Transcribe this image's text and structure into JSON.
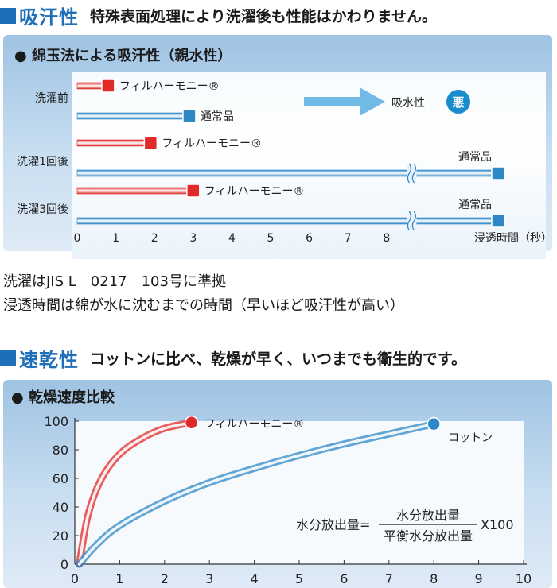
{
  "section1": {
    "title": "吸汗性",
    "subtitle": "特殊表面処理により洗濯後も性能はかわりません。",
    "panel_title": "● 綿玉法による吸汗性（親水性）",
    "notes": [
      "洗濯はJIS L　0217　103号に準拠",
      "浸透時間は綿が水に沈むまでの時間（早いほど吸汗性が高い）"
    ]
  },
  "section2": {
    "title": "速乾性",
    "subtitle": "コットンに比べ、乾燥が早く、いつまでも衛生的です。",
    "panel_title": "● 乾燥速度比較"
  },
  "colors": {
    "accent": "#1f6fb8",
    "red": "#e02a2a",
    "blue": "#2f88c6",
    "badge": "#1a8ccc"
  },
  "chart_data": [
    {
      "type": "bar",
      "orientation": "horizontal",
      "title": "綿玉法による吸汗性（親水性）",
      "xlabel": "浸透時間（秒）",
      "x_ticks": [
        "0",
        "1",
        "2",
        "3",
        "4",
        "5",
        "6",
        "7",
        "8"
      ],
      "xlim": [
        0,
        8
      ],
      "axis_break_after": 8,
      "groups": [
        {
          "label": "洗濯前",
          "bars": [
            {
              "name": "フィルハーモニー®",
              "value": 0.8,
              "color": "red"
            },
            {
              "name": "通常品",
              "value": 2.9,
              "color": "blue"
            }
          ]
        },
        {
          "label": "洗濯1回後",
          "bars": [
            {
              "name": "フィルハーモニー®",
              "value": 1.9,
              "color": "red"
            },
            {
              "name": "通常品",
              "value": ">8",
              "color": "blue",
              "broken": true
            }
          ]
        },
        {
          "label": "洗濯3回後",
          "bars": [
            {
              "name": "フィルハーモニー®",
              "value": 3.0,
              "color": "red"
            },
            {
              "name": "通常品",
              "value": ">8",
              "color": "blue",
              "broken": true
            }
          ]
        }
      ],
      "annotation": {
        "text": "吸水性",
        "badge": "悪"
      }
    },
    {
      "type": "line",
      "title": "乾燥速度比較",
      "xlim": [
        0,
        10
      ],
      "ylim": [
        0,
        100
      ],
      "x_ticks": [
        0,
        1,
        2,
        3,
        4,
        5,
        6,
        7,
        8,
        9,
        10
      ],
      "y_ticks": [
        0,
        20,
        40,
        60,
        80,
        100
      ],
      "series": [
        {
          "name": "フィルハーモニー®",
          "color": "red",
          "points": [
            [
              0.1,
              0
            ],
            [
              0.3,
              35
            ],
            [
              0.6,
              60
            ],
            [
              1.0,
              77
            ],
            [
              1.5,
              88
            ],
            [
              2.0,
              95
            ],
            [
              2.6,
              99
            ]
          ]
        },
        {
          "name": "コットン",
          "color": "blue",
          "points": [
            [
              0.1,
              0
            ],
            [
              0.5,
              14
            ],
            [
              1.0,
              27
            ],
            [
              2.0,
              44
            ],
            [
              3.0,
              57
            ],
            [
              4.0,
              67
            ],
            [
              5.0,
              76
            ],
            [
              6.0,
              84
            ],
            [
              7.0,
              91
            ],
            [
              8.0,
              98
            ]
          ]
        }
      ],
      "formula": {
        "lhs": "水分放出量=",
        "numerator": "水分放出量",
        "denominator": "平衡水分放出量",
        "multiplier": "X100"
      }
    }
  ]
}
